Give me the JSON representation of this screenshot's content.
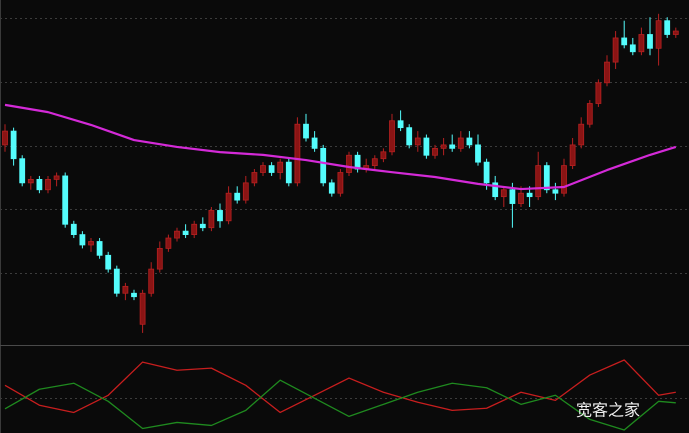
{
  "watermark": "宽客之家",
  "chart_data": [
    {
      "type": "candlestick",
      "open": [
        58,
        62,
        54,
        47,
        48,
        45,
        48,
        49,
        35,
        32,
        29,
        30,
        26,
        22,
        15,
        15,
        6,
        15,
        22,
        28,
        31,
        33,
        32,
        35,
        34,
        39,
        36,
        44,
        42,
        47,
        50,
        52,
        50,
        53,
        47,
        64,
        60,
        57,
        47,
        44,
        50,
        55,
        51,
        52,
        54,
        56,
        65,
        63,
        58,
        60,
        55,
        57,
        58,
        57,
        60,
        58,
        53,
        47,
        43,
        45,
        41,
        44,
        43,
        52,
        45,
        44,
        52,
        58,
        64,
        70,
        76,
        82,
        89,
        87,
        85,
        90,
        86,
        94,
        90
      ],
      "high": [
        64,
        63,
        55,
        49,
        49,
        49,
        50,
        50,
        36,
        33,
        31,
        31,
        27,
        23,
        18,
        16,
        16,
        24,
        30,
        32,
        34,
        35,
        36,
        37,
        40,
        41,
        46,
        46,
        49,
        51,
        53,
        53,
        54,
        54,
        66,
        67,
        62,
        58,
        48,
        51,
        56,
        56,
        54,
        55,
        57,
        67,
        68,
        64,
        62,
        61,
        58,
        60,
        61,
        62,
        62,
        61,
        54,
        49,
        46,
        47,
        46,
        46,
        56,
        53,
        47,
        54,
        60,
        66,
        71,
        77,
        84,
        91,
        94,
        89,
        92,
        95,
        96,
        95,
        92
      ],
      "low": [
        56,
        52,
        46,
        45,
        44,
        44,
        46,
        34,
        31,
        28,
        27,
        25,
        21,
        14,
        13,
        13,
        3.5,
        14,
        21,
        27,
        30,
        31,
        31,
        33,
        33,
        34,
        35,
        41,
        41,
        46,
        49,
        49,
        48,
        46,
        46,
        59,
        56,
        46,
        43,
        43,
        49,
        50,
        50,
        51,
        53,
        55,
        62,
        57,
        56,
        54,
        54,
        55,
        56,
        56,
        57,
        52,
        45,
        42,
        40,
        34,
        40,
        40,
        42,
        44,
        42,
        43,
        51,
        57,
        63,
        69,
        75,
        80,
        86,
        84,
        84,
        84,
        81,
        89,
        89
      ],
      "close": [
        62,
        54,
        47,
        48,
        45,
        48,
        49,
        35,
        32,
        29,
        30,
        26,
        22,
        15,
        17,
        14,
        15,
        22,
        28,
        31,
        33,
        32,
        35,
        34,
        39,
        36,
        44,
        42,
        47,
        50,
        52,
        50,
        53,
        47,
        64,
        60,
        57,
        47,
        44,
        50,
        55,
        51,
        52,
        54,
        56,
        65,
        63,
        58,
        60,
        55,
        57,
        58,
        57,
        60,
        58,
        53,
        47,
        43,
        45,
        41,
        44,
        43,
        52,
        45,
        44,
        52,
        58,
        64,
        70,
        76,
        82,
        89,
        87,
        85,
        90,
        86,
        94,
        90,
        91
      ],
      "up_color": "#8a1414",
      "down_color": "#54fcfc",
      "ylim": [
        0,
        100
      ],
      "yticks": [
        20.9,
        39.4,
        57.7,
        76.2,
        94.8
      ],
      "grid": true,
      "overlay": {
        "type": "line",
        "color": "#d42ad8",
        "x": [
          0,
          5,
          10,
          15,
          20,
          25,
          30,
          35,
          40,
          45,
          50,
          55,
          60,
          65,
          70,
          75,
          78
        ],
        "values": [
          69.6,
          67.5,
          63.8,
          59.4,
          57.4,
          55.9,
          55.1,
          53.6,
          51.6,
          50.1,
          48.7,
          46.7,
          45.2,
          45.8,
          50.7,
          55.1,
          57.4
        ]
      }
    },
    {
      "type": "line",
      "ylim": [
        -1.15,
        1.7
      ],
      "yticks": [
        0
      ],
      "grid": true,
      "series": [
        {
          "color": "#c81e1e",
          "x": [
            0,
            4,
            8,
            12,
            16,
            20,
            24,
            28,
            32,
            36,
            40,
            44,
            48,
            52,
            56,
            60,
            64,
            68,
            72,
            76,
            78
          ],
          "values": [
            0.43,
            -0.23,
            -0.47,
            0.1,
            1.2,
            0.93,
            1.0,
            0.43,
            -0.47,
            0.1,
            0.67,
            0.2,
            -0.13,
            -0.4,
            -0.33,
            0.2,
            -0.07,
            0.77,
            1.27,
            0.1,
            0.2
          ]
        },
        {
          "color": "#1f8a1f",
          "x": [
            0,
            4,
            8,
            12,
            16,
            20,
            24,
            28,
            32,
            36,
            40,
            44,
            48,
            52,
            56,
            60,
            64,
            68,
            72,
            76,
            78
          ],
          "values": [
            -0.35,
            0.3,
            0.5,
            -0.1,
            -1.0,
            -0.8,
            -0.9,
            -0.4,
            0.6,
            0.0,
            -0.6,
            -0.2,
            0.2,
            0.5,
            0.35,
            -0.2,
            0.1,
            -0.7,
            -1.05,
            -0.1,
            -0.15
          ]
        }
      ]
    }
  ]
}
